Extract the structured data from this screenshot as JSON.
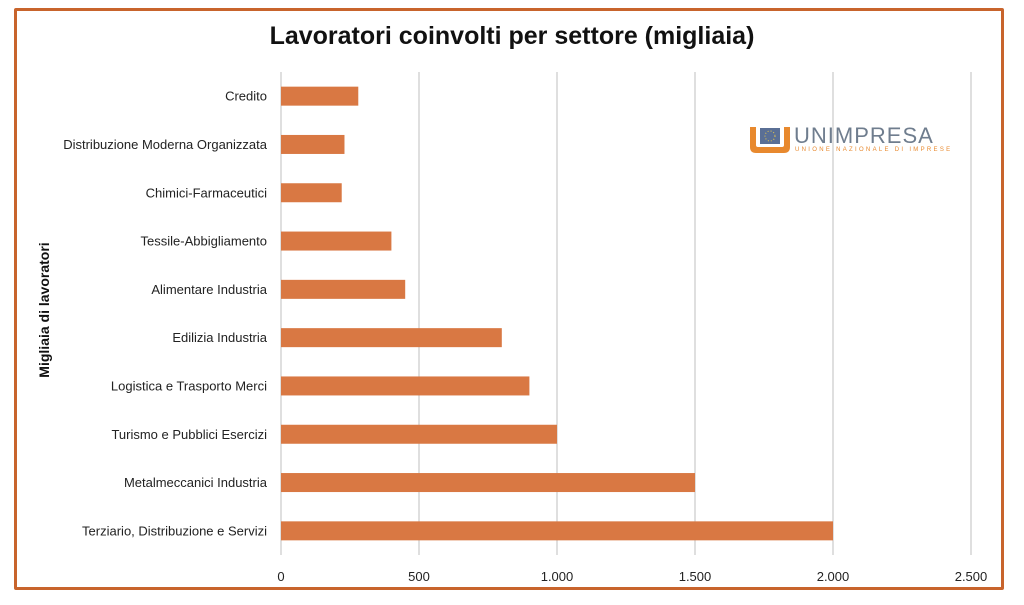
{
  "chart_data": {
    "type": "bar",
    "orientation": "horizontal",
    "title": "Lavoratori coinvolti per settore (migliaia)",
    "xlabel": "",
    "ylabel": "Migliaia di lavoratori",
    "categories": [
      "Credito",
      "Distribuzione Moderna Organizzata",
      "Chimici-Farmaceutici",
      "Tessile-Abbigliamento",
      "Alimentare Industria",
      "Edilizia Industria",
      "Logistica e Trasporto Merci",
      "Turismo e Pubblici Esercizi",
      "Metalmeccanici Industria",
      "Terziario, Distribuzione e Servizi"
    ],
    "values": [
      280,
      230,
      220,
      400,
      450,
      800,
      900,
      1000,
      1500,
      2000
    ],
    "xlim": [
      0,
      2500
    ],
    "xticks": [
      0,
      500,
      1000,
      1500,
      2000,
      2500
    ],
    "xtick_labels": [
      "0",
      "500",
      "1.000",
      "1.500",
      "2.000",
      "2.500"
    ],
    "grid": "vertical",
    "bar_color": "#d97843"
  },
  "logo": {
    "name": "UNIMPRESA",
    "subtitle": "UNIONE NAZIONALE DI IMPRESE"
  },
  "colors": {
    "frame": "#c8642c",
    "grid": "#bfbfbf"
  }
}
